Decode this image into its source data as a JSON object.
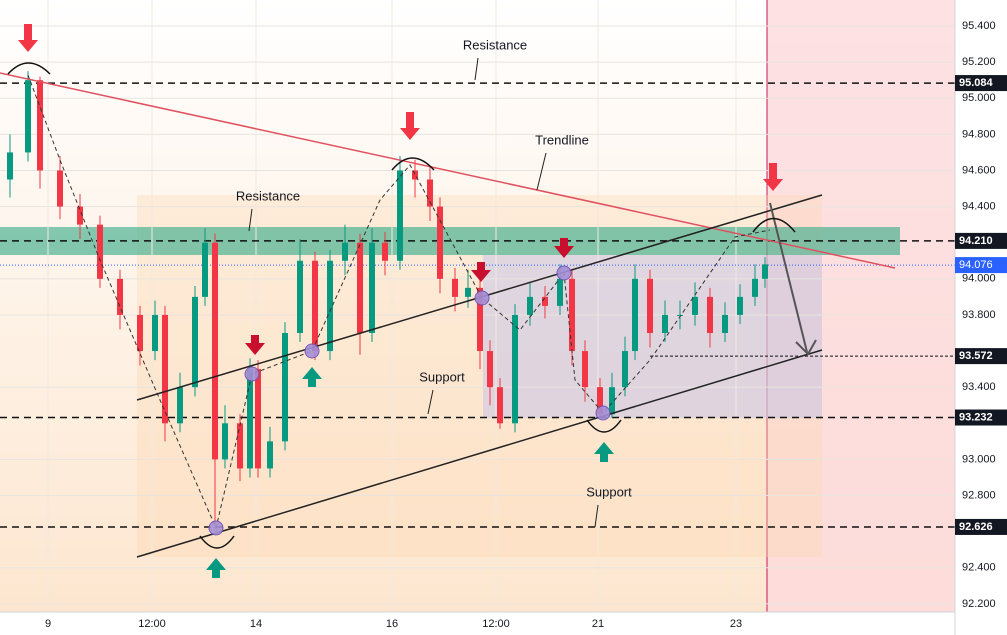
{
  "chart_data": {
    "type": "candlestick",
    "x": [
      1.0,
      2.8,
      4.0,
      6.0,
      8.0,
      10.0,
      12.0,
      14.0,
      15.5,
      16.5,
      18.0,
      19.5,
      20.5,
      21.5,
      22.5,
      24.0,
      25.0,
      25.8,
      27.0,
      28.5,
      30.0,
      31.5,
      33.0,
      34.5,
      36.0,
      37.2,
      38.5,
      40.0,
      41.5,
      43.0,
      44.0,
      45.5,
      46.8,
      48.0,
      49.0,
      50.0,
      51.5,
      53.0,
      54.5,
      56.0,
      57.2,
      58.5,
      60.0,
      61.2,
      62.5,
      63.5,
      65.0,
      66.5,
      68.0,
      69.5,
      71.0,
      72.5,
      74.0,
      75.5,
      76.5
    ],
    "open": [
      94.55,
      94.7,
      95.1,
      94.6,
      94.4,
      94.3,
      94.0,
      93.8,
      93.6,
      93.8,
      93.2,
      93.4,
      93.9,
      94.2,
      93.0,
      93.2,
      92.95,
      93.5,
      92.95,
      93.1,
      93.7,
      94.1,
      93.6,
      94.1,
      94.2,
      93.7,
      94.2,
      94.1,
      94.6,
      94.55,
      94.4,
      94.0,
      93.9,
      93.95,
      93.6,
      93.4,
      93.2,
      93.8,
      93.9,
      93.85,
      94.0,
      93.6,
      93.4,
      93.25,
      93.4,
      93.6,
      94.0,
      93.7,
      93.8,
      93.8,
      93.9,
      93.7,
      93.8,
      93.9,
      94.0
    ],
    "high": [
      94.8,
      95.15,
      95.12,
      94.68,
      94.47,
      94.35,
      94.05,
      93.85,
      93.88,
      93.85,
      93.48,
      93.96,
      94.28,
      94.25,
      93.3,
      93.25,
      93.56,
      93.55,
      93.18,
      93.76,
      94.22,
      94.15,
      94.16,
      94.3,
      94.25,
      94.28,
      94.26,
      94.68,
      94.66,
      94.62,
      94.45,
      94.06,
      94.05,
      94.0,
      93.66,
      93.45,
      93.86,
      93.98,
      93.96,
      94.08,
      94.05,
      93.66,
      93.45,
      93.48,
      93.68,
      94.08,
      94.05,
      93.88,
      93.88,
      93.98,
      93.95,
      93.87,
      93.97,
      94.08,
      94.12
    ],
    "low": [
      94.45,
      94.65,
      94.5,
      94.33,
      94.22,
      93.95,
      93.72,
      93.52,
      93.55,
      93.1,
      93.15,
      93.35,
      93.85,
      92.62,
      92.95,
      92.88,
      92.9,
      92.9,
      92.9,
      93.05,
      93.65,
      93.55,
      93.55,
      94.02,
      93.58,
      93.65,
      94.02,
      94.05,
      94.45,
      94.32,
      93.92,
      93.82,
      93.84,
      93.5,
      93.3,
      93.17,
      93.15,
      93.74,
      93.78,
      93.8,
      93.52,
      93.32,
      93.23,
      93.23,
      93.35,
      93.55,
      93.62,
      93.65,
      93.72,
      93.74,
      93.62,
      93.65,
      93.75,
      93.85,
      93.95
    ],
    "close": [
      94.7,
      95.1,
      94.6,
      94.4,
      94.3,
      94.0,
      93.8,
      93.6,
      93.8,
      93.2,
      93.4,
      93.9,
      94.2,
      93.0,
      93.2,
      92.95,
      93.5,
      92.95,
      93.1,
      93.7,
      94.1,
      93.6,
      94.1,
      94.2,
      93.7,
      94.2,
      94.1,
      94.6,
      94.55,
      94.4,
      94.0,
      93.9,
      93.95,
      93.6,
      93.4,
      93.2,
      93.8,
      93.9,
      93.85,
      94.0,
      93.6,
      93.4,
      93.25,
      93.4,
      93.6,
      94.0,
      93.7,
      93.8,
      93.8,
      93.9,
      93.7,
      93.8,
      93.9,
      94.0,
      94.08
    ],
    "up_color": "#089981",
    "down_color": "#f23645",
    "xlim": [
      0,
      95.5
    ],
    "ylim": [
      92.155,
      95.544
    ],
    "xticks": [
      {
        "value": 4.8,
        "label": "9"
      },
      {
        "value": 15.2,
        "label": "12:00"
      },
      {
        "value": 25.6,
        "label": "14"
      },
      {
        "value": 39.2,
        "label": "16"
      },
      {
        "value": 49.6,
        "label": "12:00"
      },
      {
        "value": 59.8,
        "label": "21"
      },
      {
        "value": 73.6,
        "label": "23"
      }
    ],
    "yticks": [
      {
        "value": 95.4,
        "label": "95.400"
      },
      {
        "value": 95.2,
        "label": "95.200"
      },
      {
        "value": 95.0,
        "label": "95.000"
      },
      {
        "value": 94.8,
        "label": "94.800"
      },
      {
        "value": 94.6,
        "label": "94.600"
      },
      {
        "value": 94.4,
        "label": "94.400"
      },
      {
        "value": 94.0,
        "label": "94.000"
      },
      {
        "value": 93.8,
        "label": "93.800"
      },
      {
        "value": 93.4,
        "label": "93.400"
      },
      {
        "value": 93.0,
        "label": "93.000"
      },
      {
        "value": 92.8,
        "label": "92.800"
      },
      {
        "value": 92.4,
        "label": "92.400"
      },
      {
        "value": 92.2,
        "label": "92.200"
      }
    ],
    "grid": true,
    "levels": [
      95.084,
      {
        "value": 94.21,
        "label": "94.210"
      },
      93.572,
      93.232,
      92.626
    ],
    "current_price": 94.076,
    "current_price_color": "#2962ff",
    "annotations": [
      "Resistance",
      "Trendline",
      "Resistance",
      "Support",
      "Support"
    ]
  }
}
